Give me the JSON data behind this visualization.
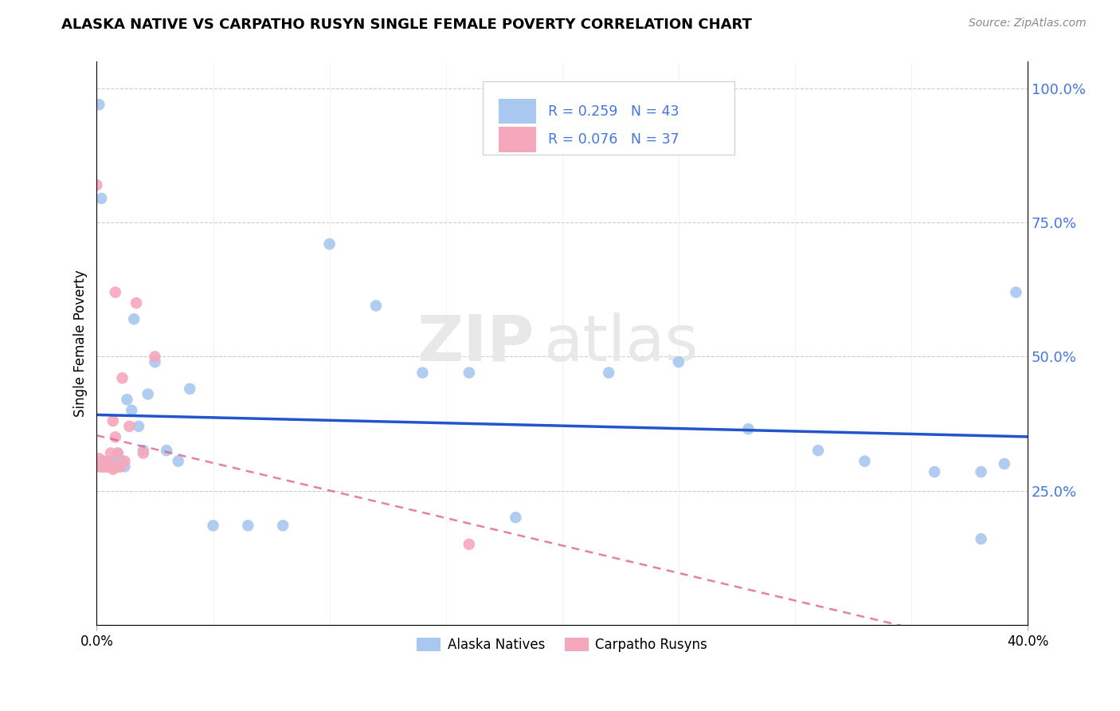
{
  "title": "ALASKA NATIVE VS CARPATHO RUSYN SINGLE FEMALE POVERTY CORRELATION CHART",
  "source": "Source: ZipAtlas.com",
  "ylabel": "Single Female Poverty",
  "legend_r1": "R = 0.259",
  "legend_n1": "N = 43",
  "legend_r2": "R = 0.076",
  "legend_n2": "N = 37",
  "alaska_color": "#a8c8f0",
  "carpatho_color": "#f5a8bc",
  "trendline_alaska_color": "#2255cc",
  "trendline_carpatho_color": "#dd5588",
  "watermark_zip": "ZIP",
  "watermark_atlas": "atlas",
  "background_color": "#ffffff",
  "grid_color": "#cccccc",
  "ytick_color": "#4477dd",
  "alaska_x": [
    0.001,
    0.002,
    0.003,
    0.004,
    0.005,
    0.005,
    0.006,
    0.007,
    0.007,
    0.008,
    0.009,
    0.009,
    0.01,
    0.011,
    0.012,
    0.013,
    0.015,
    0.016,
    0.018,
    0.02,
    0.022,
    0.025,
    0.03,
    0.035,
    0.04,
    0.05,
    0.065,
    0.08,
    0.1,
    0.12,
    0.14,
    0.16,
    0.18,
    0.22,
    0.25,
    0.28,
    0.31,
    0.33,
    0.36,
    0.38,
    0.38,
    0.39,
    0.395
  ],
  "alaska_y": [
    0.97,
    0.795,
    0.305,
    0.3,
    0.295,
    0.305,
    0.3,
    0.3,
    0.295,
    0.305,
    0.305,
    0.32,
    0.295,
    0.305,
    0.295,
    0.42,
    0.4,
    0.57,
    0.37,
    0.325,
    0.43,
    0.49,
    0.325,
    0.305,
    0.44,
    0.185,
    0.185,
    0.185,
    0.71,
    0.595,
    0.47,
    0.47,
    0.2,
    0.47,
    0.49,
    0.365,
    0.325,
    0.305,
    0.285,
    0.285,
    0.16,
    0.3,
    0.62
  ],
  "carpatho_x": [
    0.0,
    0.001,
    0.001,
    0.001,
    0.002,
    0.002,
    0.002,
    0.003,
    0.003,
    0.003,
    0.004,
    0.004,
    0.004,
    0.005,
    0.005,
    0.005,
    0.005,
    0.006,
    0.006,
    0.007,
    0.007,
    0.007,
    0.007,
    0.008,
    0.008,
    0.008,
    0.009,
    0.009,
    0.01,
    0.01,
    0.011,
    0.012,
    0.014,
    0.017,
    0.02,
    0.025,
    0.16
  ],
  "carpatho_y": [
    0.82,
    0.295,
    0.3,
    0.31,
    0.295,
    0.295,
    0.3,
    0.295,
    0.295,
    0.3,
    0.295,
    0.295,
    0.3,
    0.295,
    0.295,
    0.3,
    0.305,
    0.295,
    0.32,
    0.29,
    0.295,
    0.295,
    0.38,
    0.295,
    0.35,
    0.62,
    0.295,
    0.32,
    0.295,
    0.295,
    0.46,
    0.305,
    0.37,
    0.6,
    0.32,
    0.5,
    0.15
  ],
  "xlim": [
    0,
    0.4
  ],
  "ylim": [
    0,
    1.05
  ],
  "ytick_positions": [
    0.25,
    0.5,
    0.75,
    1.0
  ],
  "ytick_labels": [
    "25.0%",
    "50.0%",
    "75.0%",
    "100.0%"
  ],
  "xtick_minor_positions": [
    0.05,
    0.1,
    0.15,
    0.2,
    0.25,
    0.3,
    0.35
  ],
  "figsize": [
    14.06,
    8.92
  ],
  "dpi": 100
}
